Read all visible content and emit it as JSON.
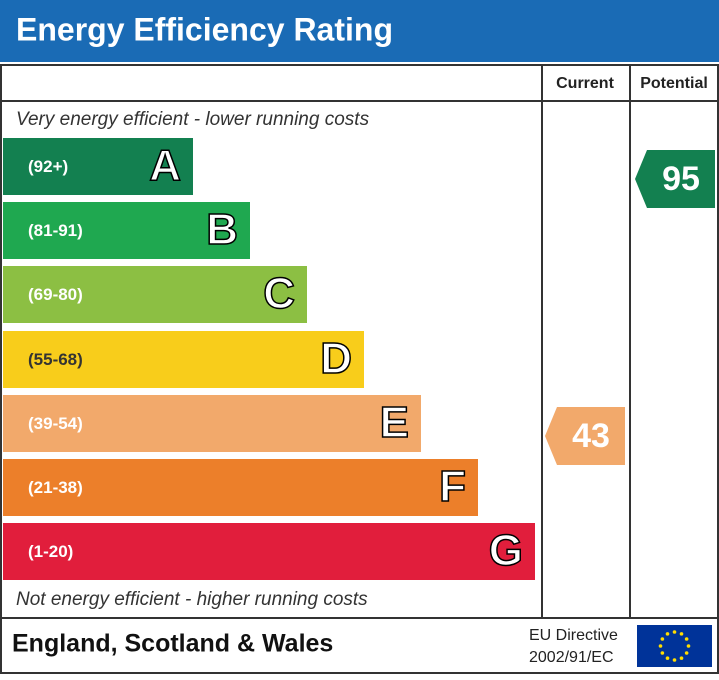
{
  "header": {
    "title": "Energy Efficiency Rating"
  },
  "columns": {
    "current": "Current",
    "potential": "Potential"
  },
  "top_note": "Very energy efficient - lower running costs",
  "bands": [
    {
      "range": "(92+)",
      "letter": "A",
      "color": "#138050"
    },
    {
      "range": "(81-91)",
      "letter": "B",
      "color": "#1fa850"
    },
    {
      "range": "(69-80)",
      "letter": "C",
      "color": "#8cbf43"
    },
    {
      "range": "(55-68)",
      "letter": "D",
      "color": "#f8cd1b"
    },
    {
      "range": "(39-54)",
      "letter": "E",
      "color": "#f2a96b"
    },
    {
      "range": "(21-38)",
      "letter": "F",
      "color": "#ec7f2a"
    },
    {
      "range": "(1-20)",
      "letter": "G",
      "color": "#e11e3c"
    }
  ],
  "current": {
    "value": 43
  },
  "potential": {
    "value": 95
  },
  "bottom_note": "Not energy efficient - higher running costs",
  "footer": {
    "region": "England, Scotland & Wales",
    "directive": "EU Directive",
    "directive_number": "2002/91/EC"
  }
}
